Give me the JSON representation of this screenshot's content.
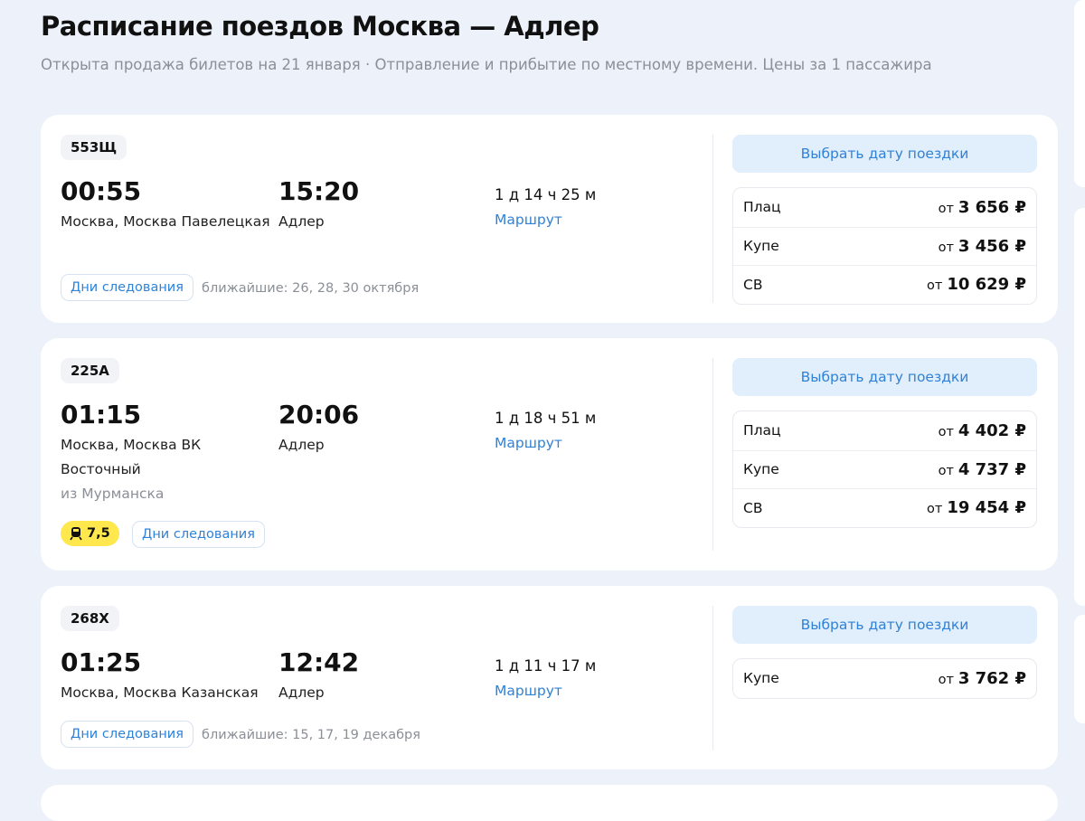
{
  "header": {
    "title": "Расписание поездов Москва — Адлер",
    "subtitle": "Открыта продажа билетов на 21 января · Отправление и прибытие по местному времени. Цены за 1 пассажира"
  },
  "trains": [
    {
      "number": "553Щ",
      "departure_time": "00:55",
      "arrival_time": "15:20",
      "departure_station": "Москва, Москва Павелецкая",
      "arrival_station": "Адлер",
      "duration": "1 д 14 ч 25 м",
      "route_link": "Маршрут",
      "days_button": "Дни следования",
      "nearest": "ближайшие: 26, 28, 30 октября",
      "pick_date_button": "Выбрать дату поездки",
      "prices": [
        {
          "class": "Плац",
          "prefix": "от",
          "price": "3 656 ₽"
        },
        {
          "class": "Купе",
          "prefix": "от",
          "price": "3 456 ₽"
        },
        {
          "class": "СВ",
          "prefix": "от",
          "price": "10 629 ₽"
        }
      ]
    },
    {
      "number": "225А",
      "departure_time": "01:15",
      "arrival_time": "20:06",
      "departure_station": "Москва, Москва ВК Восточный",
      "origin_note": "из Мурманска",
      "arrival_station": "Адлер",
      "duration": "1 д 18 ч 51 м",
      "route_link": "Маршрут",
      "rating": "7,5",
      "rating_icon": "train-icon",
      "days_button": "Дни следования",
      "pick_date_button": "Выбрать дату поездки",
      "prices": [
        {
          "class": "Плац",
          "prefix": "от",
          "price": "4 402 ₽"
        },
        {
          "class": "Купе",
          "prefix": "от",
          "price": "4 737 ₽"
        },
        {
          "class": "СВ",
          "prefix": "от",
          "price": "19 454 ₽"
        }
      ]
    },
    {
      "number": "268Х",
      "departure_time": "01:25",
      "arrival_time": "12:42",
      "departure_station": "Москва, Москва Казанская",
      "arrival_station": "Адлер",
      "duration": "1 д 11 ч 17 м",
      "route_link": "Маршрут",
      "days_button": "Дни следования",
      "nearest": "ближайшие: 15, 17, 19 декабря",
      "pick_date_button": "Выбрать дату поездки",
      "prices": [
        {
          "class": "Купе",
          "prefix": "от",
          "price": "3 762 ₽"
        }
      ]
    }
  ],
  "colors": {
    "accent": "#2f82d8",
    "background": "#edf2fa",
    "rating_badge": "#ffe84d"
  }
}
